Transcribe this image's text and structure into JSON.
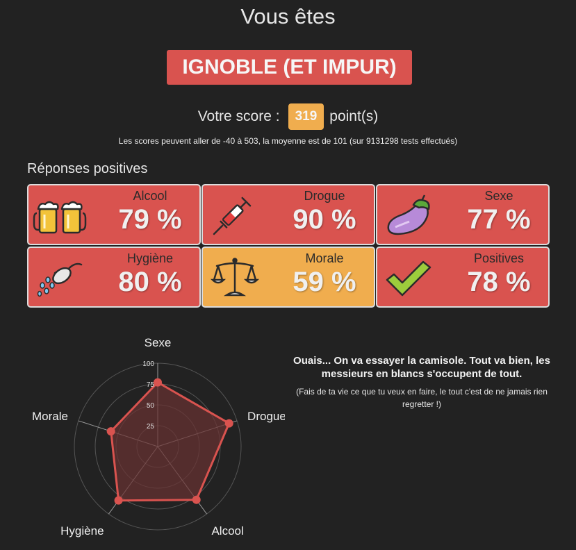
{
  "header": {
    "title": "Vous êtes",
    "verdict": "IGNOBLE (ET IMPUR)"
  },
  "score": {
    "label": "Votre score :",
    "value": "319",
    "unit": "point(s)",
    "info": "Les scores peuvent aller de -40 à 503, la moyenne est de 101 (sur 9131298 tests effectués)"
  },
  "positives": {
    "title": "Réponses positives",
    "cards": [
      {
        "label": "Alcool",
        "percent": "79 %",
        "icon": "beer-mugs-icon",
        "color": "#d9534f"
      },
      {
        "label": "Drogue",
        "percent": "90 %",
        "icon": "syringe-icon",
        "color": "#d9534f"
      },
      {
        "label": "Sexe",
        "percent": "77 %",
        "icon": "eggplant-icon",
        "color": "#d9534f"
      },
      {
        "label": "Hygiène",
        "percent": "80 %",
        "icon": "shower-icon",
        "color": "#d9534f"
      },
      {
        "label": "Morale",
        "percent": "59 %",
        "icon": "scales-icon",
        "color": "#f0ad4e"
      },
      {
        "label": "Positives",
        "percent": "78 %",
        "icon": "check-mark-icon",
        "color": "#d9534f"
      }
    ]
  },
  "chart_data": {
    "type": "radar",
    "categories": [
      "Sexe",
      "Drogue",
      "Alcool",
      "Hygiène",
      "Morale"
    ],
    "values": [
      77,
      90,
      79,
      80,
      59
    ],
    "r_ticks": [
      "25",
      "50",
      "75",
      "100"
    ],
    "rlim": [
      0,
      100
    ],
    "grid": true,
    "series_color": "#d9534f",
    "fill_color": "#6a3232"
  },
  "message": {
    "main": "Ouais... On va essayer la camisole. Tout va bien, les messieurs en blancs s'occupent de tout.",
    "sub": "(Fais de ta vie ce que tu veux en faire, le tout c'est de ne jamais rien regretter !)"
  }
}
